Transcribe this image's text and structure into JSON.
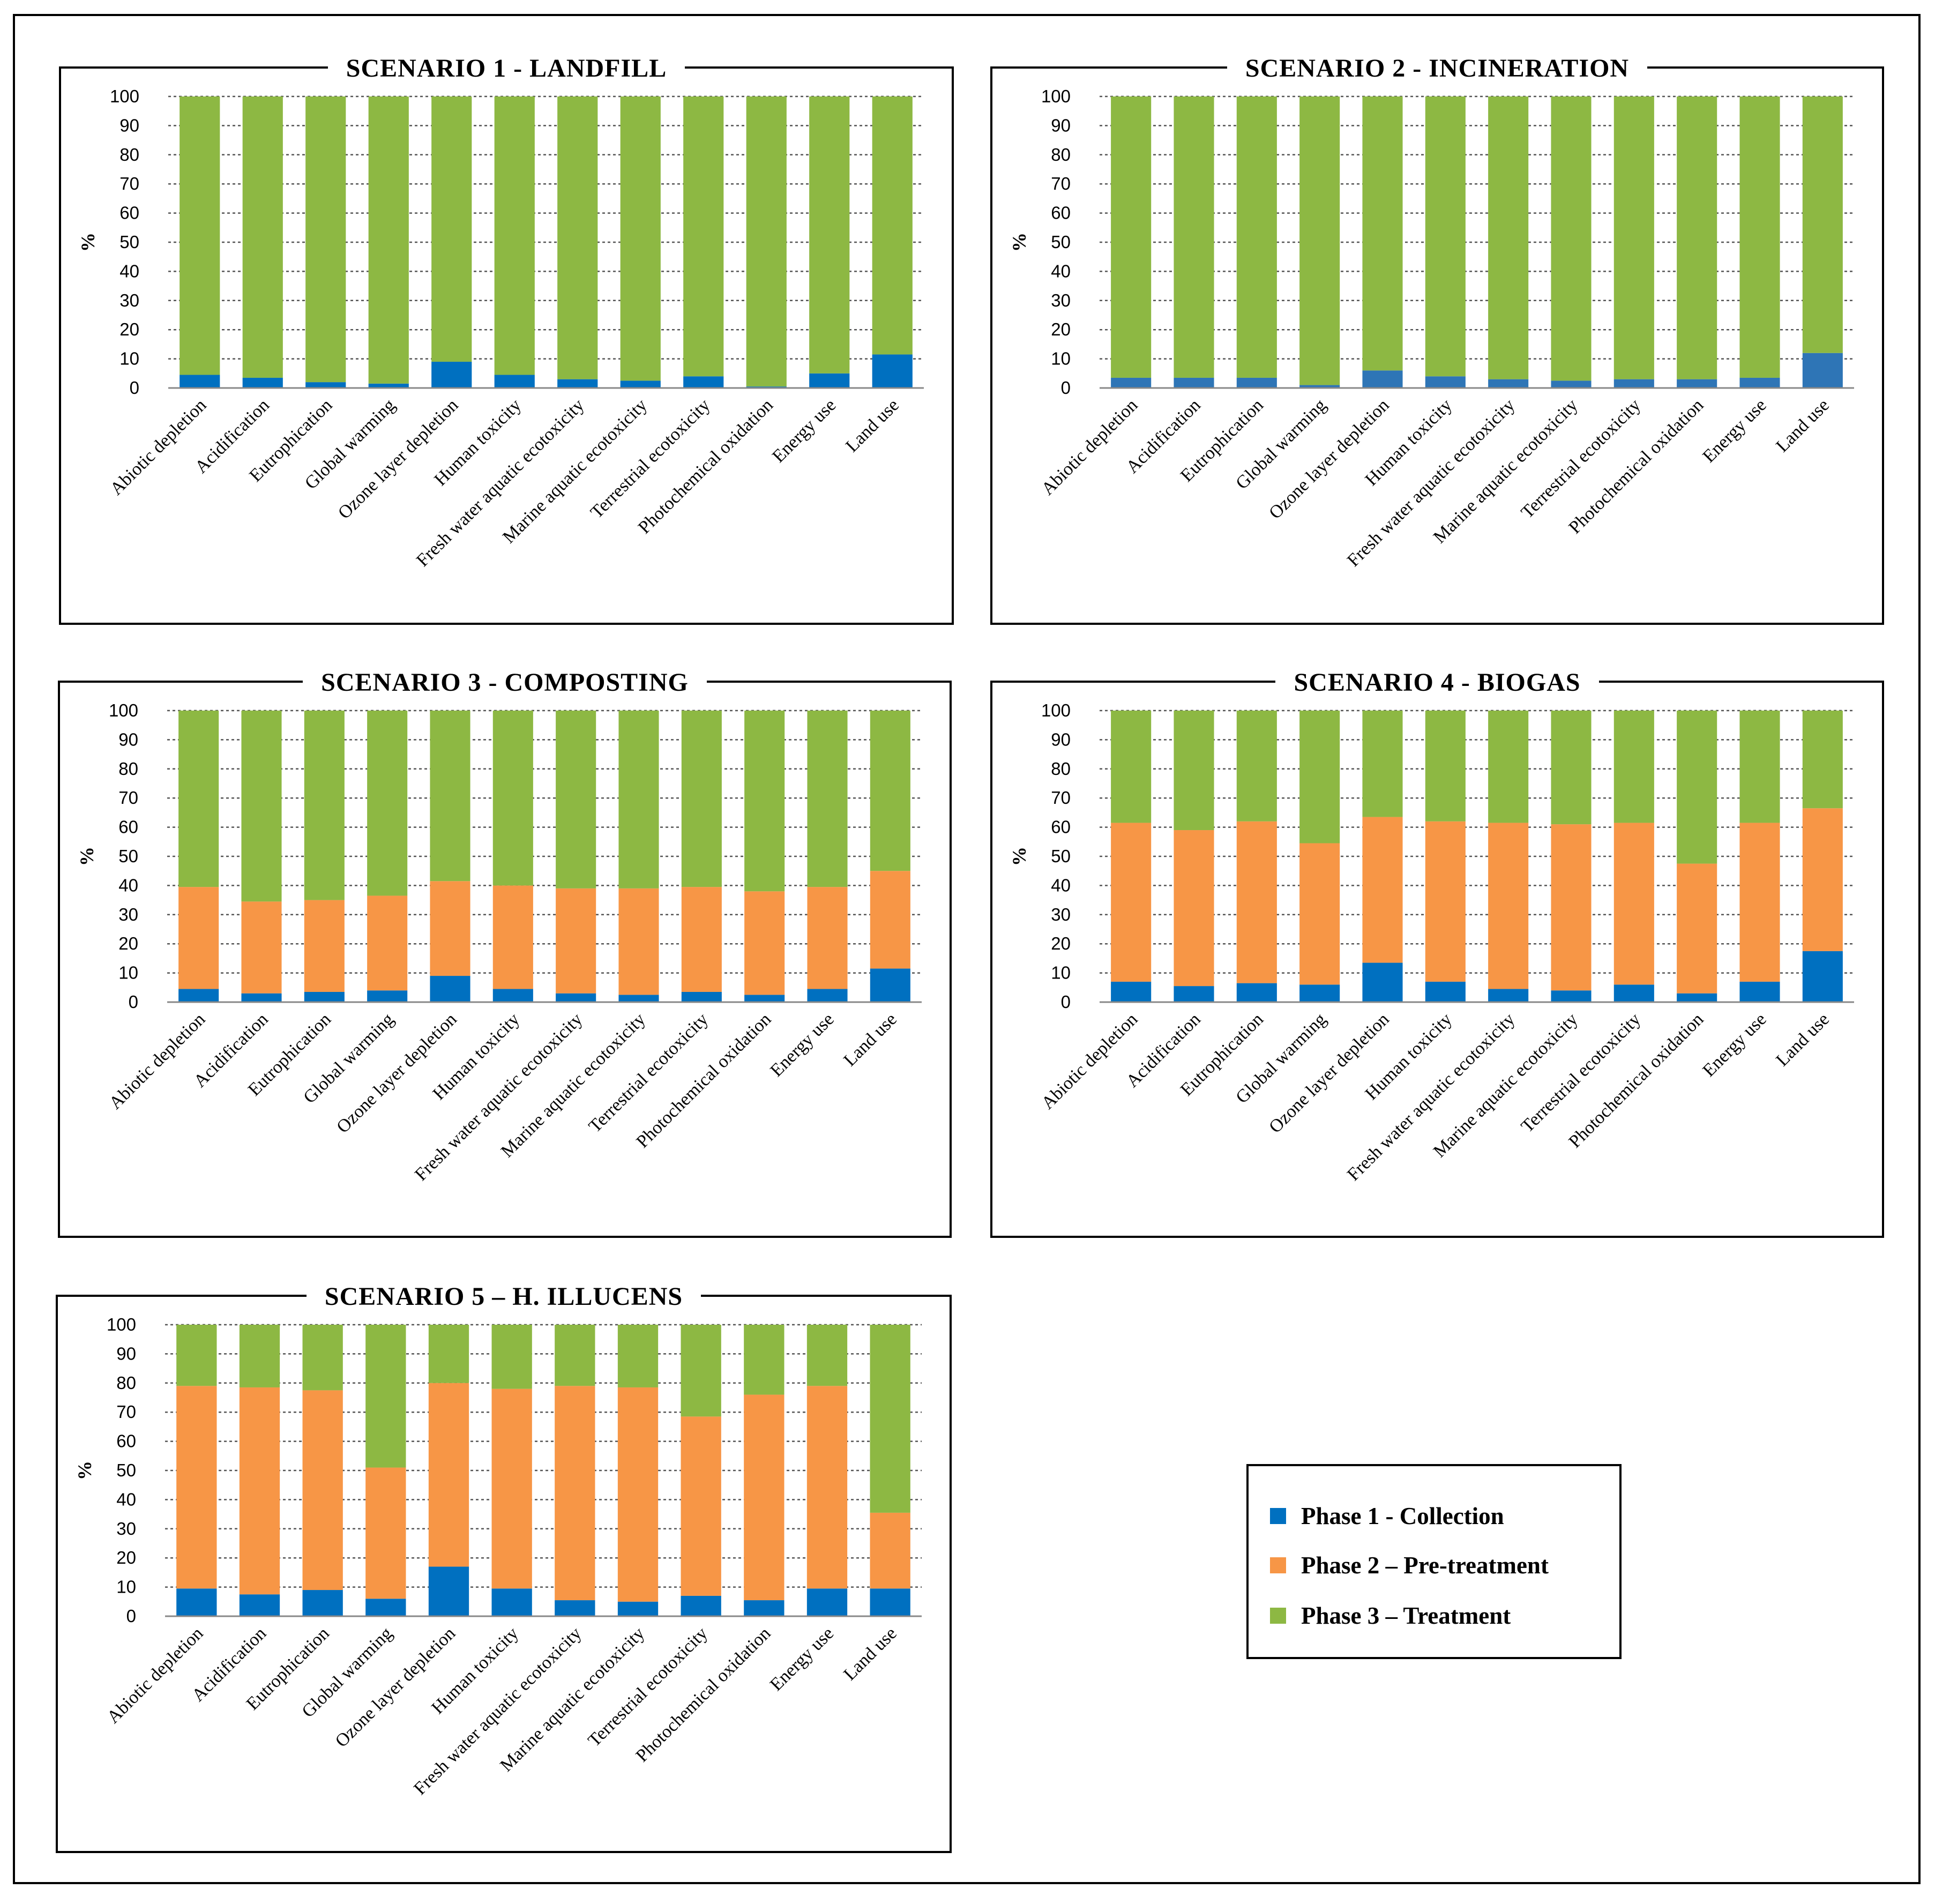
{
  "legend": {
    "items": [
      {
        "label": "Phase 1 - Collection",
        "color": "#0070C0"
      },
      {
        "label": "Phase 2 – Pre-treatment",
        "color": "#F79646"
      },
      {
        "label": "Phase 3 – Treatment",
        "color": "#8DB843"
      }
    ]
  },
  "chart_data": [
    {
      "type": "bar",
      "stacked": true,
      "title": "SCENARIO 1 - LANDFILL",
      "ylabel": "%",
      "ylim": [
        0,
        100
      ],
      "yticks": [
        0,
        10,
        20,
        30,
        40,
        50,
        60,
        70,
        80,
        90,
        100
      ],
      "categories": [
        "Abiotic depletion",
        "Acidification",
        "Eutrophication",
        "Global warming",
        "Ozone layer depletion",
        "Human toxicity",
        "Fresh water aquatic ecotoxicity",
        "Marine aquatic ecotoxicity",
        "Terrestrial ecotoxicity",
        "Photochemical oxidation",
        "Energy use",
        "Land use"
      ],
      "series": [
        {
          "name": "Phase 1 - Collection",
          "color": "#0070C0",
          "values": [
            4.5,
            3.5,
            2,
            1.5,
            9,
            4.5,
            3,
            2.5,
            4,
            0.5,
            5,
            11.5
          ]
        },
        {
          "name": "Phase 2 – Pre-treatment",
          "color": "#F79646",
          "values": [
            0,
            0,
            0,
            0,
            0,
            0,
            0,
            0,
            0,
            0,
            0,
            0
          ]
        },
        {
          "name": "Phase 3 – Treatment",
          "color": "#8DB843",
          "values": [
            95.5,
            96.5,
            98,
            98.5,
            91,
            95.5,
            97,
            97.5,
            96,
            99.5,
            95,
            88.5
          ]
        }
      ]
    },
    {
      "type": "bar",
      "stacked": true,
      "title": "SCENARIO 2 - INCINERATION",
      "ylabel": "%",
      "ylim": [
        0,
        100
      ],
      "yticks": [
        0,
        10,
        20,
        30,
        40,
        50,
        60,
        70,
        80,
        90,
        100
      ],
      "categories": [
        "Abiotic depletion",
        "Acidification",
        "Eutrophication",
        "Global warming",
        "Ozone layer depletion",
        "Human toxicity",
        "Fresh water aquatic ecotoxicity",
        "Marine aquatic ecotoxicity",
        "Terrestrial ecotoxicity",
        "Photochemical oxidation",
        "Energy use",
        "Land use"
      ],
      "series": [
        {
          "name": "Phase 1 - Collection",
          "color": "#2E75B6",
          "values": [
            3.5,
            3.5,
            3.5,
            1,
            6,
            4,
            3,
            2.5,
            3,
            3,
            3.5,
            12
          ]
        },
        {
          "name": "Phase 2 – Pre-treatment",
          "color": "#F79646",
          "values": [
            0,
            0,
            0,
            0,
            0,
            0,
            0,
            0,
            0,
            0,
            0,
            0
          ]
        },
        {
          "name": "Phase 3 – Treatment",
          "color": "#8DB843",
          "values": [
            96.5,
            96.5,
            96.5,
            99,
            94,
            96,
            97,
            97.5,
            97,
            97,
            96.5,
            88
          ]
        }
      ]
    },
    {
      "type": "bar",
      "stacked": true,
      "title": "SCENARIO 3 - COMPOSTING",
      "ylabel": "%",
      "ylim": [
        0,
        100
      ],
      "yticks": [
        0,
        10,
        20,
        30,
        40,
        50,
        60,
        70,
        80,
        90,
        100
      ],
      "categories": [
        "Abiotic depletion",
        "Acidification",
        "Eutrophication",
        "Global warming",
        "Ozone layer depletion",
        "Human toxicity",
        "Fresh water aquatic ecotoxicity",
        "Marine aquatic ecotoxicity",
        "Terrestrial ecotoxicity",
        "Photochemical oxidation",
        "Energy use",
        "Land use"
      ],
      "series": [
        {
          "name": "Phase 1 - Collection",
          "color": "#0070C0",
          "values": [
            4.5,
            3,
            3.5,
            4,
            9,
            4.5,
            3,
            2.5,
            3.5,
            2.5,
            4.5,
            11.5
          ]
        },
        {
          "name": "Phase 2 – Pre-treatment",
          "color": "#F79646",
          "values": [
            35,
            31.5,
            31.5,
            32.5,
            32.5,
            35.5,
            36,
            36.5,
            36,
            35.5,
            35,
            33.5
          ]
        },
        {
          "name": "Phase 3 – Treatment",
          "color": "#8DB843",
          "values": [
            60.5,
            65.5,
            65,
            63.5,
            58.5,
            60,
            61,
            61,
            60.5,
            62,
            60.5,
            55
          ]
        }
      ]
    },
    {
      "type": "bar",
      "stacked": true,
      "title": "SCENARIO 4 - BIOGAS",
      "ylabel": "%",
      "ylim": [
        0,
        100
      ],
      "yticks": [
        0,
        10,
        20,
        30,
        40,
        50,
        60,
        70,
        80,
        90,
        100
      ],
      "categories": [
        "Abiotic depletion",
        "Acidification",
        "Eutrophication",
        "Global warming",
        "Ozone layer depletion",
        "Human toxicity",
        "Fresh water aquatic ecotoxicity",
        "Marine aquatic ecotoxicity",
        "Terrestrial ecotoxicity",
        "Photochemical oxidation",
        "Energy use",
        "Land use"
      ],
      "series": [
        {
          "name": "Phase 1 - Collection",
          "color": "#0070C0",
          "values": [
            7,
            5.5,
            6.5,
            6,
            13.5,
            7,
            4.5,
            4,
            6,
            3,
            7,
            17.5
          ]
        },
        {
          "name": "Phase 2 – Pre-treatment",
          "color": "#F79646",
          "values": [
            54.5,
            53.5,
            55.5,
            48.5,
            50,
            55,
            57,
            57,
            55.5,
            44.5,
            54.5,
            49
          ]
        },
        {
          "name": "Phase 3 – Treatment",
          "color": "#8DB843",
          "values": [
            38.5,
            41,
            38,
            45.5,
            36.5,
            38,
            38.5,
            39,
            38.5,
            52.5,
            38.5,
            33.5
          ]
        }
      ]
    },
    {
      "type": "bar",
      "stacked": true,
      "title": "SCENARIO 5 – H. ILLUCENS",
      "ylabel": "%",
      "ylim": [
        0,
        100
      ],
      "yticks": [
        0,
        10,
        20,
        30,
        40,
        50,
        60,
        70,
        80,
        90,
        100
      ],
      "categories": [
        "Abiotic depletion",
        "Acidification",
        "Eutrophication",
        "Global warming",
        "Ozone layer depletion",
        "Human toxicity",
        "Fresh water aquatic ecotoxicity",
        "Marine aquatic ecotoxicity",
        "Terrestrial ecotoxicity",
        "Photochemical oxidation",
        "Energy use",
        "Land use"
      ],
      "series": [
        {
          "name": "Phase 1 - Collection",
          "color": "#0070C0",
          "values": [
            9.5,
            7.5,
            9,
            6,
            17,
            9.5,
            5.5,
            5,
            7,
            5.5,
            9.5,
            9.5
          ]
        },
        {
          "name": "Phase 2 – Pre-treatment",
          "color": "#F79646",
          "values": [
            69.5,
            71,
            68.5,
            45,
            63,
            68.5,
            73.5,
            73.5,
            61.5,
            70.5,
            69.5,
            26
          ]
        },
        {
          "name": "Phase 3 – Treatment",
          "color": "#8DB843",
          "values": [
            21,
            21.5,
            22.5,
            49,
            20,
            22,
            21,
            21.5,
            31.5,
            24,
            21,
            64.5
          ]
        }
      ]
    }
  ]
}
